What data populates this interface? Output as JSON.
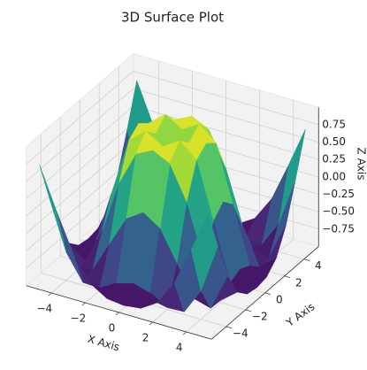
{
  "chart_data": {
    "type": "surface",
    "title": "3D Surface Plot",
    "xlabel": "X Axis",
    "ylabel": "Y Axis",
    "zlabel": "Z Axis",
    "x": [
      -5,
      -4,
      -3,
      -2,
      -1,
      0,
      1,
      2,
      3,
      4,
      5
    ],
    "y": [
      -5,
      -4,
      -3,
      -2,
      -1,
      0,
      1,
      2,
      3,
      4,
      5
    ],
    "z": [
      [
        0.71,
        0.12,
        -0.43,
        -0.78,
        -0.93,
        -0.96,
        -0.93,
        -0.78,
        -0.43,
        0.12,
        0.71
      ],
      [
        0.12,
        -0.59,
        -0.96,
        -0.97,
        -0.83,
        -0.76,
        -0.83,
        -0.97,
        -0.96,
        -0.59,
        0.12
      ],
      [
        -0.43,
        -0.96,
        -0.89,
        -0.45,
        -0.02,
        0.14,
        -0.02,
        -0.45,
        -0.89,
        -0.96,
        -0.43
      ],
      [
        -0.78,
        -0.97,
        -0.45,
        0.31,
        0.79,
        0.91,
        0.79,
        0.31,
        -0.45,
        -0.97,
        -0.78
      ],
      [
        -0.93,
        -0.83,
        -0.02,
        0.79,
        0.99,
        0.84,
        0.99,
        0.79,
        -0.02,
        -0.83,
        -0.93
      ],
      [
        -0.96,
        -0.76,
        0.14,
        0.91,
        0.84,
        0,
        0.84,
        0.91,
        0.14,
        -0.76,
        -0.96
      ],
      [
        -0.93,
        -0.83,
        -0.02,
        0.79,
        0.99,
        0.84,
        0.99,
        0.79,
        -0.02,
        -0.83,
        -0.93
      ],
      [
        -0.78,
        -0.97,
        -0.45,
        0.31,
        0.79,
        0.91,
        0.79,
        0.31,
        -0.45,
        -0.97,
        -0.78
      ],
      [
        -0.43,
        -0.96,
        -0.89,
        -0.45,
        -0.02,
        0.14,
        -0.02,
        -0.45,
        -0.89,
        -0.96,
        -0.43
      ],
      [
        0.12,
        -0.59,
        -0.96,
        -0.97,
        -0.83,
        -0.76,
        -0.83,
        -0.97,
        -0.96,
        -0.59,
        0.12
      ],
      [
        0.71,
        0.12,
        -0.43,
        -0.78,
        -0.93,
        -0.96,
        -0.93,
        -0.78,
        -0.43,
        0.12,
        0.71
      ]
    ],
    "xlim": [
      -5.5,
      5.5
    ],
    "ylim": [
      -5.5,
      5.5
    ],
    "zlim": [
      -1,
      1
    ],
    "xticks": [
      {
        "value": -4,
        "label": "−4"
      },
      {
        "value": -2,
        "label": "−2"
      },
      0,
      2,
      4
    ],
    "yticks": [
      {
        "value": -4,
        "label": "−4"
      },
      {
        "value": -2,
        "label": "−2"
      },
      0,
      2,
      4
    ],
    "zticks": [
      {
        "value": -0.75,
        "label": "−0.75"
      },
      {
        "value": -0.5,
        "label": "−0.50"
      },
      {
        "value": -0.25,
        "label": "−0.25"
      },
      {
        "value": 0,
        "label": "0.00"
      },
      {
        "value": 0.25,
        "label": "0.25"
      },
      {
        "value": 0.5,
        "label": "0.50"
      },
      {
        "value": 0.75,
        "label": "0.75"
      }
    ],
    "colormap": "viridis",
    "grid": true
  }
}
